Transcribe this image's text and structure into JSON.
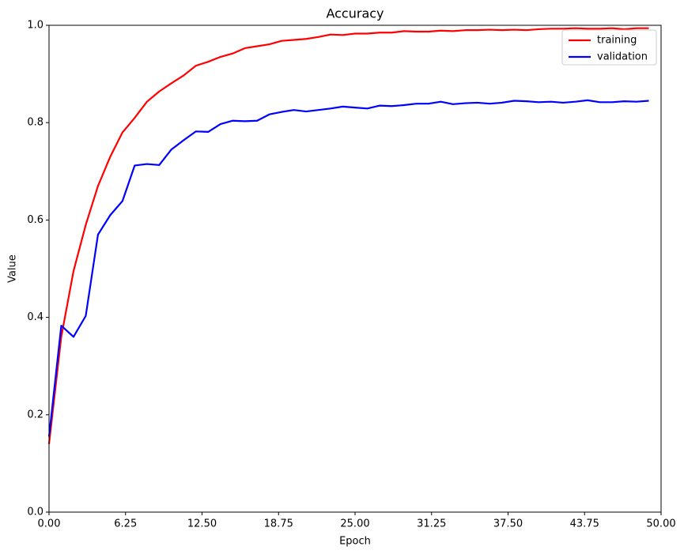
{
  "chart_data": {
    "type": "line",
    "title": "Accuracy",
    "x_label": "Epoch",
    "y_label": "Value",
    "x": [
      0,
      1,
      2,
      3,
      4,
      5,
      6,
      7,
      8,
      9,
      10,
      11,
      12,
      13,
      14,
      15,
      16,
      17,
      18,
      19,
      20,
      21,
      22,
      23,
      24,
      25,
      26,
      27,
      28,
      29,
      30,
      31,
      32,
      33,
      34,
      35,
      36,
      37,
      38,
      39,
      40,
      41,
      42,
      43,
      44,
      45,
      46,
      47,
      48,
      49
    ],
    "series": [
      {
        "name": "training",
        "color": "#ff0000",
        "values": [
          0.14,
          0.36,
          0.495,
          0.59,
          0.67,
          0.73,
          0.78,
          0.81,
          0.843,
          0.864,
          0.881,
          0.897,
          0.917,
          0.925,
          0.935,
          0.942,
          0.953,
          0.957,
          0.961,
          0.968,
          0.97,
          0.972,
          0.976,
          0.981,
          0.98,
          0.983,
          0.983,
          0.985,
          0.985,
          0.988,
          0.987,
          0.987,
          0.989,
          0.988,
          0.99,
          0.99,
          0.991,
          0.99,
          0.991,
          0.99,
          0.992,
          0.993,
          0.993,
          0.994,
          0.993,
          0.993,
          0.994,
          0.992,
          0.994,
          0.994
        ]
      },
      {
        "name": "validation",
        "color": "#0000ff",
        "values": [
          0.155,
          0.383,
          0.36,
          0.403,
          0.57,
          0.61,
          0.639,
          0.712,
          0.715,
          0.713,
          0.745,
          0.764,
          0.782,
          0.781,
          0.797,
          0.804,
          0.803,
          0.804,
          0.817,
          0.822,
          0.826,
          0.823,
          0.826,
          0.829,
          0.833,
          0.831,
          0.829,
          0.835,
          0.834,
          0.836,
          0.839,
          0.839,
          0.843,
          0.838,
          0.84,
          0.841,
          0.839,
          0.841,
          0.845,
          0.844,
          0.842,
          0.843,
          0.841,
          0.843,
          0.846,
          0.842,
          0.842,
          0.844,
          0.843,
          0.845
        ]
      }
    ],
    "xlim": [
      0,
      50
    ],
    "xticks": [
      {
        "value": 0,
        "label": "0.00"
      },
      {
        "value": 6.25,
        "label": "6.25"
      },
      {
        "value": 12.5,
        "label": "12.50"
      },
      {
        "value": 18.75,
        "label": "18.75"
      },
      {
        "value": 25,
        "label": "25.00"
      },
      {
        "value": 31.25,
        "label": "31.25"
      },
      {
        "value": 37.5,
        "label": "37.50"
      },
      {
        "value": 43.75,
        "label": "43.75"
      },
      {
        "value": 50,
        "label": "50.00"
      }
    ],
    "ylim": [
      0,
      1
    ],
    "yticks": [
      {
        "value": 0,
        "label": "0.0"
      },
      0.2,
      0.4,
      0.6,
      0.8,
      {
        "value": 1,
        "label": "1.0"
      }
    ],
    "grid": false,
    "legend": "upper right"
  }
}
